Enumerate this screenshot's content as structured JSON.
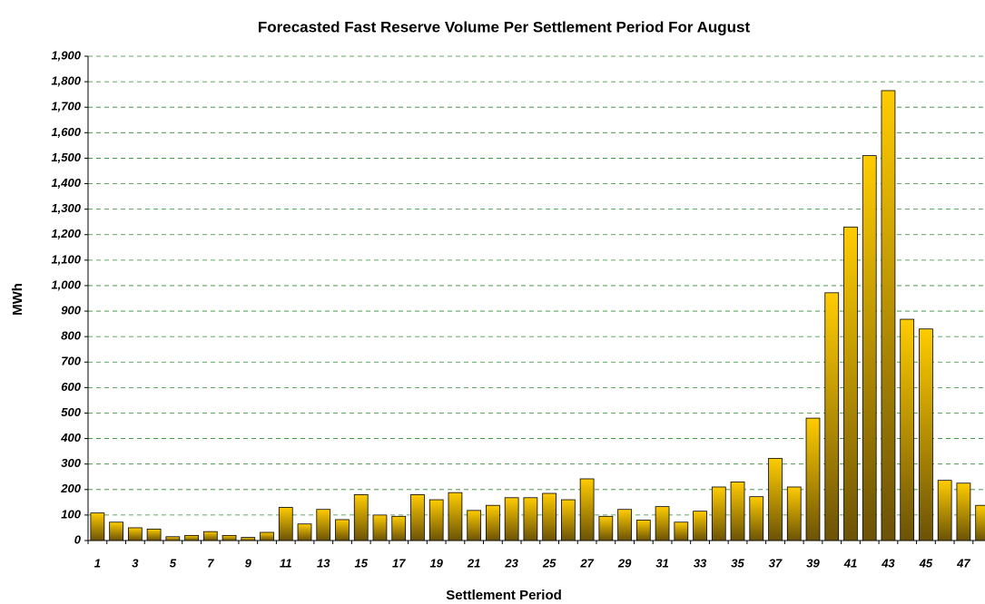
{
  "chart_data": {
    "type": "bar",
    "title": "Forecasted Fast Reserve Volume Per Settlement Period For August",
    "x_label": "Settlement Period",
    "y_label": "MWh",
    "categories": [
      "1",
      null,
      "3",
      null,
      "5",
      null,
      "7",
      null,
      "9",
      null,
      "11",
      null,
      "13",
      null,
      "15",
      null,
      "17",
      null,
      "19",
      null,
      "21",
      null,
      "23",
      null,
      "25",
      null,
      "27",
      null,
      "29",
      null,
      "31",
      null,
      "33",
      null,
      "35",
      null,
      "37",
      null,
      "39",
      null,
      "41",
      null,
      "43",
      null,
      "45",
      null,
      "47",
      null
    ],
    "values": [
      108,
      72,
      50,
      45,
      15,
      20,
      35,
      20,
      12,
      32,
      130,
      65,
      122,
      82,
      180,
      100,
      95,
      180,
      160,
      188,
      118,
      138,
      168,
      168,
      185,
      160,
      242,
      95,
      122,
      80,
      133,
      72,
      115,
      210,
      230,
      172,
      322,
      210,
      480,
      972,
      1230,
      1510,
      1765,
      868,
      830,
      236,
      225,
      138
    ],
    "color": "#ffcc00",
    "ylim": [
      0,
      1900
    ],
    "yticks": [
      0,
      100,
      200,
      300,
      400,
      500,
      600,
      700,
      800,
      900,
      {
        "value": 1000,
        "label": "1,000"
      },
      {
        "value": 1100,
        "label": "1,100"
      },
      {
        "value": 1200,
        "label": "1,200"
      },
      {
        "value": 1300,
        "label": "1,300"
      },
      {
        "value": 1400,
        "label": "1,400"
      },
      {
        "value": 1500,
        "label": "1,500"
      },
      {
        "value": 1600,
        "label": "1,600"
      },
      {
        "value": 1700,
        "label": "1,700"
      },
      {
        "value": 1800,
        "label": "1,800"
      },
      {
        "value": 1900,
        "label": "1,900"
      }
    ],
    "grid": true
  }
}
